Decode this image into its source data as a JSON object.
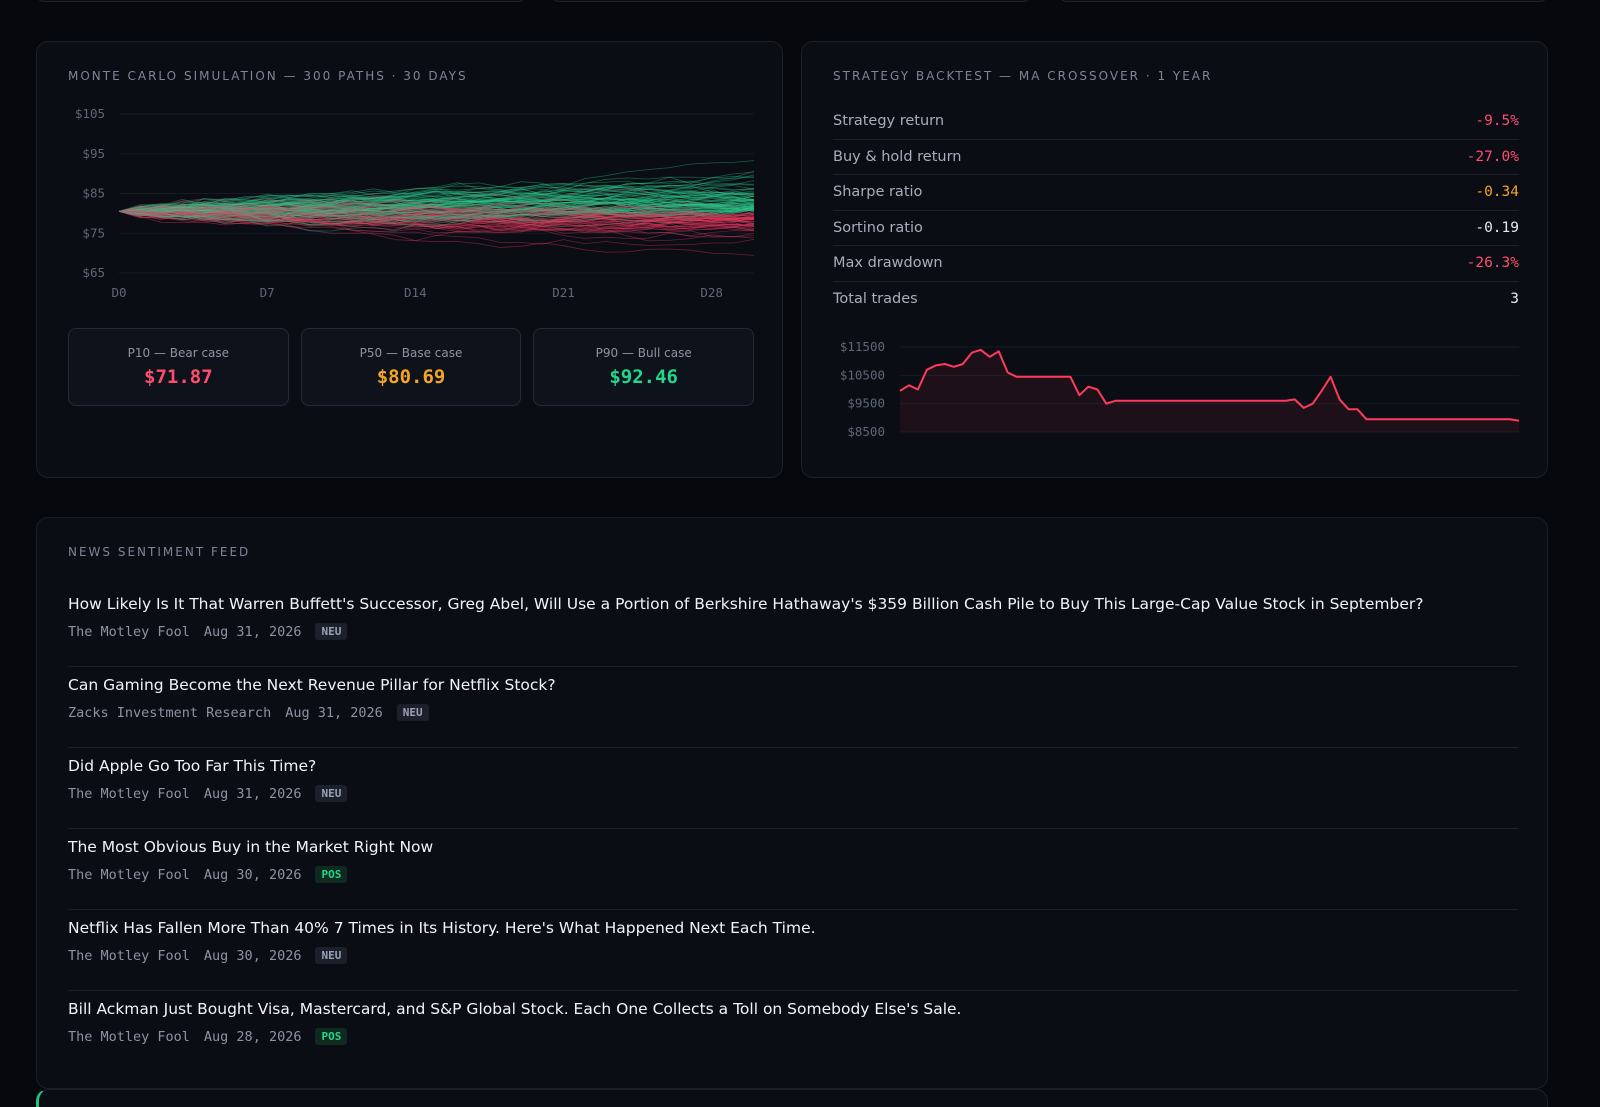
{
  "monte_carlo": {
    "title": "MONTE CARLO SIMULATION — 300 PATHS · 30 DAYS",
    "percentiles": [
      {
        "label": "P10 — Bear case",
        "value": "$71.87",
        "color": "#ff4d6d"
      },
      {
        "label": "P50 — Base case",
        "value": "$80.69",
        "color": "#f5a524"
      },
      {
        "label": "P90 — Bull case",
        "value": "$92.46",
        "color": "#22d68a"
      }
    ]
  },
  "backtest": {
    "title": "STRATEGY BACKTEST — MA CROSSOVER · 1 YEAR",
    "stats": [
      {
        "label": "Strategy return",
        "value": "-9.5%",
        "color": "#ff4d6d"
      },
      {
        "label": "Buy & hold return",
        "value": "-27.0%",
        "color": "#ff4d6d"
      },
      {
        "label": "Sharpe ratio",
        "value": "-0.34",
        "color": "#f5a524"
      },
      {
        "label": "Sortino ratio",
        "value": "-0.19",
        "color": "#e6e9ef"
      },
      {
        "label": "Max drawdown",
        "value": "-26.3%",
        "color": "#ff4d6d"
      },
      {
        "label": "Total trades",
        "value": "3",
        "color": "#e6e9ef"
      }
    ]
  },
  "news": {
    "title": "NEWS SENTIMENT FEED",
    "items": [
      {
        "title": "How Likely Is It That Warren Buffett's Successor, Greg Abel, Will Use a Portion of Berkshire Hathaway's $359 Billion Cash Pile to Buy This Large-Cap Value Stock in September?",
        "source": "The Motley Fool",
        "date": "Aug 31, 2026",
        "sentiment": "NEU"
      },
      {
        "title": "Can Gaming Become the Next Revenue Pillar for Netflix Stock?",
        "source": "Zacks Investment Research",
        "date": "Aug 31, 2026",
        "sentiment": "NEU"
      },
      {
        "title": "Did Apple Go Too Far This Time?",
        "source": "The Motley Fool",
        "date": "Aug 31, 2026",
        "sentiment": "NEU"
      },
      {
        "title": "The Most Obvious Buy in the Market Right Now",
        "source": "The Motley Fool",
        "date": "Aug 30, 2026",
        "sentiment": "POS"
      },
      {
        "title": "Netflix Has Fallen More Than 40% 7 Times in Its History. Here's What Happened Next Each Time.",
        "source": "The Motley Fool",
        "date": "Aug 30, 2026",
        "sentiment": "NEU"
      },
      {
        "title": "Bill Ackman Just Bought Visa, Mastercard, and S&P Global Stock. Each One Collects a Toll on Somebody Else's Sale.",
        "source": "The Motley Fool",
        "date": "Aug 28, 2026",
        "sentiment": "POS"
      }
    ]
  },
  "chart_data": [
    {
      "type": "line",
      "xlabel": "",
      "ylabel": "",
      "x_ticks": [
        "D0",
        "D7",
        "D14",
        "D21",
        "D28"
      ],
      "y_ticks": [
        "$105",
        "$95",
        "$85",
        "$75",
        "$65"
      ],
      "ylim": [
        65,
        105
      ],
      "xlim": [
        0,
        30
      ],
      "start_value": 80.5,
      "path_count_shown": 300,
      "colors": {
        "up": "#2ec98a",
        "down": "#e8395f"
      }
    },
    {
      "type": "area",
      "xlabel": "",
      "ylabel": "",
      "y_ticks": [
        "$11500",
        "$10500",
        "$9500",
        "$8500"
      ],
      "ylim": [
        8500,
        11500
      ],
      "values": [
        9950,
        10150,
        10000,
        10700,
        10850,
        10900,
        10800,
        10900,
        11300,
        11400,
        11150,
        11350,
        10600,
        10450,
        10450,
        10450,
        10450,
        10450,
        10450,
        10450,
        9800,
        10100,
        10000,
        9500,
        9600,
        9600,
        9600,
        9600,
        9600,
        9600,
        9600,
        9600,
        9600,
        9600,
        9600,
        9600,
        9600,
        9600,
        9600,
        9600,
        9600,
        9600,
        9600,
        9600,
        9650,
        9350,
        9500,
        9950,
        10450,
        9650,
        9300,
        9300,
        8950,
        8950,
        8950,
        8950,
        8950,
        8950,
        8950,
        8950,
        8950,
        8950,
        8950,
        8950,
        8950,
        8950,
        8950,
        8950,
        8950,
        8900
      ],
      "color": "#ff3b5c"
    }
  ]
}
